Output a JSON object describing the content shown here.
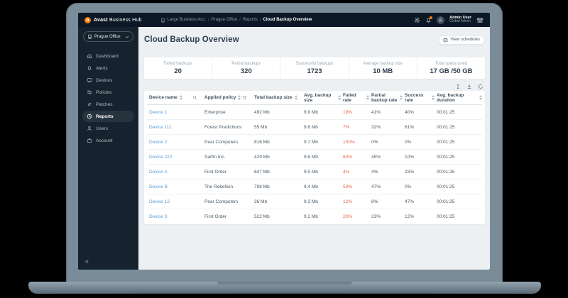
{
  "colors": {
    "accent_orange": "#ff7a00",
    "link_blue": "#5b9bd5",
    "failed_rate_red": "#e2664b",
    "topbar_bg": "#0c1825",
    "sidebar_bg": "#16232e",
    "content_bg": "#edf0f3",
    "active_nav_bg": "#273440"
  },
  "topbar": {
    "brand_bold": "Avast",
    "brand_rest": "Business Hub",
    "breadcrumb": [
      "Large Business Acc.",
      "Prague Office",
      "Reports",
      "Cloud Backup Overview"
    ],
    "user_name": "Admin User",
    "user_role": "Global Admin"
  },
  "sidebar": {
    "selector_label": "Prague Office",
    "items": [
      {
        "label": "Dashboard"
      },
      {
        "label": "Alerts"
      },
      {
        "label": "Devices"
      },
      {
        "label": "Policies"
      },
      {
        "label": "Patches"
      },
      {
        "label": "Reports"
      },
      {
        "label": "Users"
      },
      {
        "label": "Account"
      }
    ],
    "collapse_glyph": "«"
  },
  "main": {
    "title": "Cloud Backup Overview",
    "view_schedules_label": "View schedules",
    "stats": [
      {
        "label": "Failed backups",
        "value": "20"
      },
      {
        "label": "Partial backups",
        "value": "320"
      },
      {
        "label": "Successful backups",
        "value": "1723"
      },
      {
        "label": "Average backup size",
        "value": "10 MB"
      },
      {
        "label": "Total space used",
        "value": "17 GB /50 GB"
      }
    ],
    "table": {
      "columns": [
        "Device name",
        "Applied policy",
        "Total backup size",
        "Avg. backup size",
        "Failed rate",
        "Partial backup rate",
        "Success rate",
        "Avg. backup duration"
      ],
      "rows": [
        {
          "device": "Device 1",
          "policy": "Enterprise",
          "total": "492 Mb",
          "avg": "9.9 Mb",
          "failed": "19%",
          "partial": "41%",
          "success": "40%",
          "duration": "00:01:25"
        },
        {
          "device": "Device 111",
          "policy": "Forest Predictions",
          "total": "55 Mb",
          "avg": "9.8 Mb",
          "failed": "7%",
          "partial": "32%",
          "success": "61%",
          "duration": "00:01:25"
        },
        {
          "device": "Device 2",
          "policy": "Pear Computers",
          "total": "816 Mb",
          "avg": "9.7 Mb",
          "failed": "100%",
          "partial": "0%",
          "success": "0%",
          "duration": "00:01:25"
        },
        {
          "device": "Device 222",
          "policy": "Sarfin Inc.",
          "total": "429 Mb",
          "avg": "9.6 Mb",
          "failed": "60%",
          "partial": "45%",
          "success": "10%",
          "duration": "00:01:25"
        },
        {
          "device": "Device A",
          "policy": "First Order",
          "total": "647 Mb",
          "avg": "9.5 Mb",
          "failed": "4%",
          "partial": "4%",
          "success": "23%",
          "duration": "00:01:25"
        },
        {
          "device": "Device B",
          "policy": "The Rebellion",
          "total": "798 Mb",
          "avg": "9.4 Mb",
          "failed": "53%",
          "partial": "47%",
          "success": "0%",
          "duration": "00:01:25"
        },
        {
          "device": "Device 12",
          "policy": "Pear Computers",
          "total": "36 Mb",
          "avg": "9.3 Mb",
          "failed": "12%",
          "partial": "8%",
          "success": "47%",
          "duration": "00:01:25"
        },
        {
          "device": "Device 3",
          "policy": "First Order",
          "total": "522 Mb",
          "avg": "9.2 Mb",
          "failed": "20%",
          "partial": "23%",
          "success": "12%",
          "duration": "00:01:25"
        }
      ]
    }
  }
}
